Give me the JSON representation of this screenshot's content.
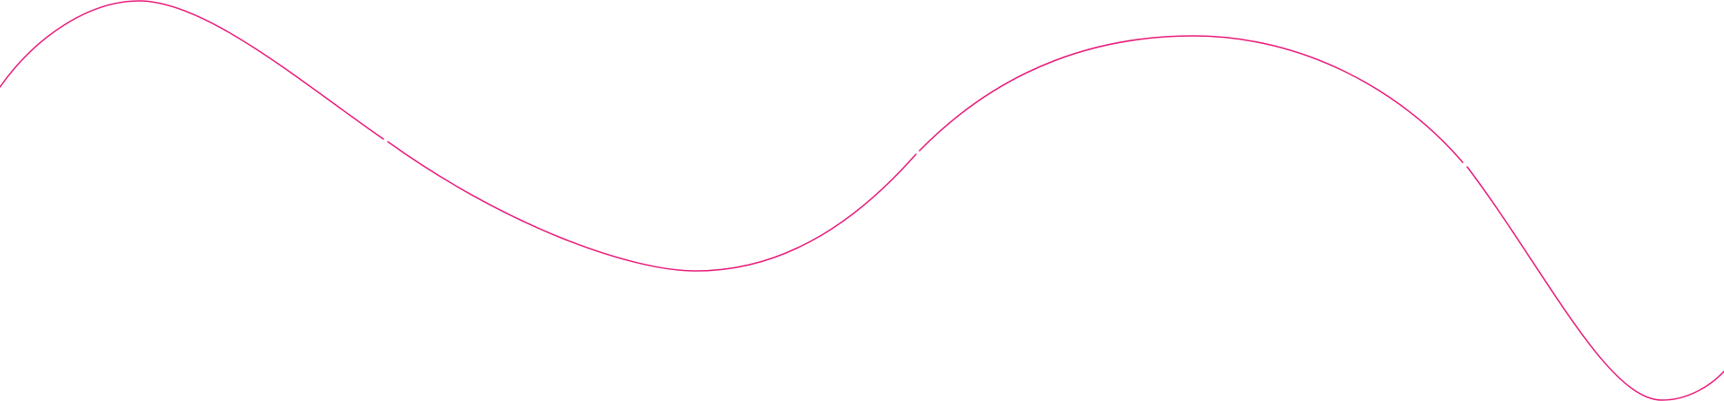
{
  "decoration": {
    "type": "wave-line",
    "stroke_color": "#e8197a",
    "background_color": "#ffffff"
  }
}
